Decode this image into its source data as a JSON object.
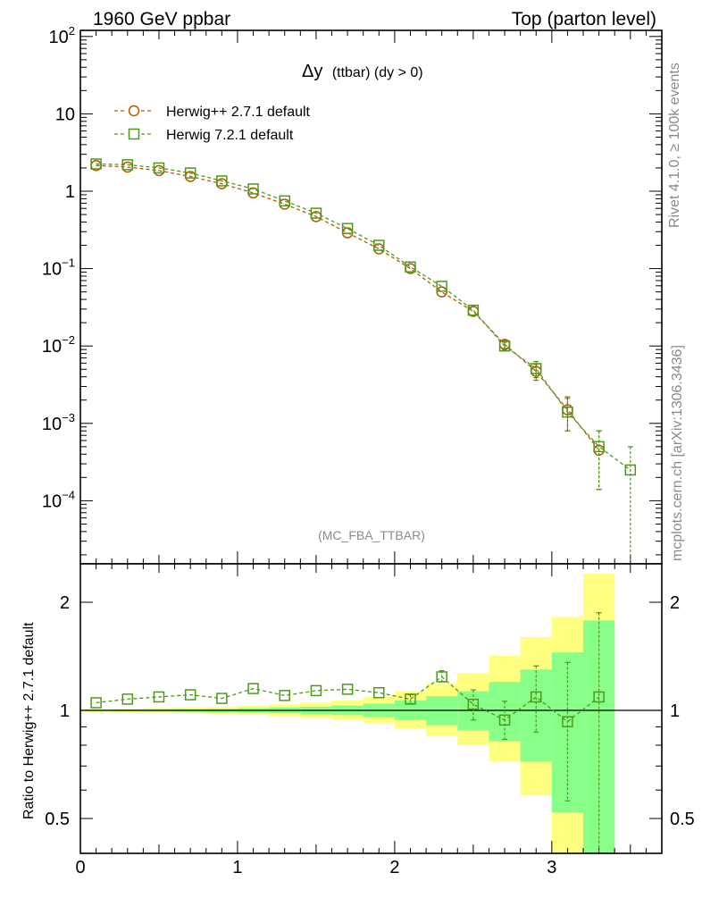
{
  "header": {
    "left": "1960 GeV ppbar",
    "right": "Top (parton level)"
  },
  "title": {
    "symbol": "Δy",
    "rest": "(ttbar) (dy > 0)"
  },
  "side_text": {
    "rivet": "Rivet 4.1.0, ≥ 100k events",
    "mcplots": "mcplots.cern.ch [arXiv:1306.3436]"
  },
  "annotation": "(MC_FBA_TTBAR)",
  "colors": {
    "herwigpp": "#b35900",
    "herwig7": "#4d9a1a",
    "band_yellow": "#ffff80",
    "band_green": "#88ff88"
  },
  "chart_data": [
    {
      "type": "line",
      "panel": "main",
      "yscale": "log",
      "xlim": [
        0,
        3.7
      ],
      "ylim": [
        1.5e-05,
        100
      ],
      "xlabel": "",
      "ylabel": "",
      "y_tick_labels": [
        {
          "base": "10",
          "exp": "2",
          "value": 100
        },
        {
          "base": "10",
          "exp": "",
          "value": 10
        },
        {
          "base": "1",
          "exp": "",
          "value": 1
        },
        {
          "base": "10",
          "exp": "−1",
          "value": 0.1
        },
        {
          "base": "10",
          "exp": "−2",
          "value": 0.01
        },
        {
          "base": "10",
          "exp": "−3",
          "value": 0.001
        },
        {
          "base": "10",
          "exp": "−4",
          "value": 0.0001
        }
      ],
      "legend": [
        "Herwig++ 2.7.1 default",
        "Herwig 7.2.1 default"
      ],
      "legend_position": "top-left",
      "series": [
        {
          "name": "Herwig++ 2.7.1 default",
          "marker": "circle",
          "x": [
            0.1,
            0.3,
            0.5,
            0.7,
            0.9,
            1.1,
            1.3,
            1.5,
            1.7,
            1.9,
            2.1,
            2.3,
            2.5,
            2.7,
            2.9,
            3.1,
            3.3
          ],
          "y": [
            2.15,
            2.05,
            1.85,
            1.55,
            1.25,
            0.95,
            0.68,
            0.47,
            0.29,
            0.18,
            0.1,
            0.05,
            0.028,
            0.0105,
            0.0047,
            0.0015,
            0.00045
          ],
          "yerr_low": [
            0,
            0,
            0,
            0,
            0,
            0,
            0,
            0,
            0,
            0,
            0,
            0,
            0,
            0.0012,
            0.0011,
            0.0007,
            0.00031
          ],
          "yerr_high": [
            0,
            0,
            0,
            0,
            0,
            0,
            0,
            0,
            0,
            0,
            0,
            0,
            0,
            0.0012,
            0.0011,
            0.0007,
            0.00035
          ]
        },
        {
          "name": "Herwig 7.2.1 default",
          "marker": "square",
          "x": [
            0.1,
            0.3,
            0.5,
            0.7,
            0.9,
            1.1,
            1.3,
            1.5,
            1.7,
            1.9,
            2.1,
            2.3,
            2.5,
            2.7,
            2.9,
            3.1,
            3.3,
            3.5
          ],
          "y": [
            2.25,
            2.2,
            2.0,
            1.72,
            1.36,
            1.07,
            0.75,
            0.52,
            0.33,
            0.2,
            0.105,
            0.059,
            0.029,
            0.01,
            0.0051,
            0.0014,
            0.0005,
            0.00025
          ],
          "yerr_low": [
            0,
            0,
            0,
            0,
            0,
            0,
            0,
            0,
            0,
            0,
            0,
            0,
            0,
            0.0012,
            0.0012,
            0.0006,
            0.00036,
            0.00025
          ],
          "yerr_high": [
            0,
            0,
            0,
            0,
            0,
            0,
            0,
            0,
            0,
            0,
            0,
            0,
            0,
            0.0012,
            0.0012,
            0.0007,
            0.0003,
            0.00025
          ]
        }
      ]
    },
    {
      "type": "line",
      "panel": "ratio",
      "yscale": "log",
      "xlim": [
        0,
        3.7
      ],
      "ylim": [
        0.38,
        2.35
      ],
      "ylabel": "Ratio to Herwig++ 2.7.1 default",
      "x_tick_labels": [
        "0",
        "1",
        "2",
        "3"
      ],
      "y_tick_labels": [
        "0.5",
        "1",
        "2"
      ],
      "reference": 1,
      "bands": {
        "x_edges": [
          0,
          0.2,
          0.4,
          0.6,
          0.8,
          1.0,
          1.2,
          1.4,
          1.6,
          1.8,
          2.0,
          2.2,
          2.4,
          2.6,
          2.8,
          3.0,
          3.2,
          3.4
        ],
        "green_low": [
          0.995,
          0.994,
          0.993,
          0.991,
          0.989,
          0.986,
          0.982,
          0.977,
          0.97,
          0.958,
          0.94,
          0.91,
          0.88,
          0.82,
          0.72,
          0.52,
          0.3
        ],
        "green_high": [
          1.005,
          1.006,
          1.007,
          1.009,
          1.011,
          1.015,
          1.019,
          1.024,
          1.031,
          1.045,
          1.065,
          1.095,
          1.13,
          1.2,
          1.3,
          1.45,
          1.78
        ],
        "yellow_low": [
          0.99,
          0.988,
          0.985,
          0.982,
          0.978,
          0.972,
          0.964,
          0.955,
          0.94,
          0.92,
          0.89,
          0.85,
          0.8,
          0.72,
          0.58,
          0.3,
          0.3
        ],
        "yellow_high": [
          1.01,
          1.012,
          1.015,
          1.018,
          1.022,
          1.03,
          1.039,
          1.05,
          1.065,
          1.09,
          1.13,
          1.19,
          1.27,
          1.42,
          1.6,
          1.82,
          2.4
        ]
      },
      "series": [
        {
          "name": "Herwig 7.2.1 default",
          "marker": "square",
          "x": [
            0.1,
            0.3,
            0.5,
            0.7,
            0.9,
            1.1,
            1.3,
            1.5,
            1.7,
            1.9,
            2.1,
            2.3,
            2.5,
            2.7,
            2.9,
            3.1,
            3.3
          ],
          "y": [
            1.05,
            1.075,
            1.09,
            1.105,
            1.08,
            1.15,
            1.1,
            1.135,
            1.145,
            1.12,
            1.075,
            1.24,
            1.04,
            0.94,
            1.09,
            0.93,
            1.09
          ],
          "yerr_low": [
            0,
            0,
            0,
            0,
            0,
            0,
            0,
            0,
            0,
            0,
            0.03,
            0.04,
            0.1,
            0.11,
            0.22,
            0.37,
            0.73
          ],
          "yerr_high": [
            0,
            0,
            0,
            0,
            0,
            0,
            0,
            0,
            0,
            0,
            0.03,
            0.05,
            0.1,
            0.12,
            0.24,
            0.43,
            0.78
          ]
        }
      ]
    }
  ]
}
